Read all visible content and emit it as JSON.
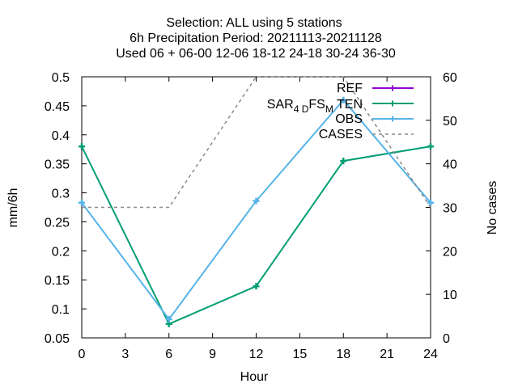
{
  "chart_data": {
    "type": "line",
    "title_lines": [
      "Selection: ALL using     5 stations",
      "6h Precipitation   Period: 20211113-20211128",
      "Used  06 + 06-00 12-06 18-12 24-18 30-24 36-30"
    ],
    "xlabel": "Hour",
    "ylabel": "mm/6h",
    "y2label": "No cases",
    "xlim": [
      0,
      24
    ],
    "ylim": [
      0.05,
      0.5
    ],
    "y2lim": [
      0,
      60
    ],
    "xticks": [
      0,
      3,
      6,
      9,
      12,
      15,
      18,
      21,
      24
    ],
    "yticks": [
      0.05,
      0.1,
      0.15,
      0.2,
      0.25,
      0.3,
      0.35,
      0.4,
      0.45,
      0.5
    ],
    "yticklabels": [
      "0.05",
      "0.1",
      "0.15",
      "0.2",
      "0.25",
      "0.3",
      "0.35",
      "0.4",
      "0.45",
      "0.5"
    ],
    "y2ticks": [
      0,
      10,
      20,
      30,
      40,
      50,
      60
    ],
    "grid": false,
    "legend_position": "top-right",
    "series": [
      {
        "name": "REF",
        "color": "#9400d3",
        "marker": "plus",
        "axis": "y",
        "x": [],
        "values": []
      },
      {
        "name": "SAR_4D FS_M TEN",
        "legend_main": "SAR",
        "legend_sub1": "4 D",
        "legend_mid": "FS",
        "legend_sub2": "M",
        "legend_tail": " TEN",
        "color": "#009e73",
        "marker": "plus",
        "axis": "y",
        "x": [
          0,
          6,
          12,
          18,
          24
        ],
        "values": [
          0.38,
          0.074,
          0.139,
          0.355,
          0.38
        ]
      },
      {
        "name": "OBS",
        "color": "#56b4e9",
        "marker": "plus",
        "axis": "y",
        "x": [
          0,
          6,
          12,
          18,
          24
        ],
        "values": [
          0.283,
          0.082,
          0.286,
          0.46,
          0.283
        ]
      },
      {
        "name": "CASES",
        "color": "#888888",
        "marker": "none",
        "dashed": true,
        "axis": "y2",
        "x": [
          0,
          6,
          12,
          18,
          24
        ],
        "values": [
          30,
          30,
          60,
          60,
          30
        ]
      }
    ]
  }
}
